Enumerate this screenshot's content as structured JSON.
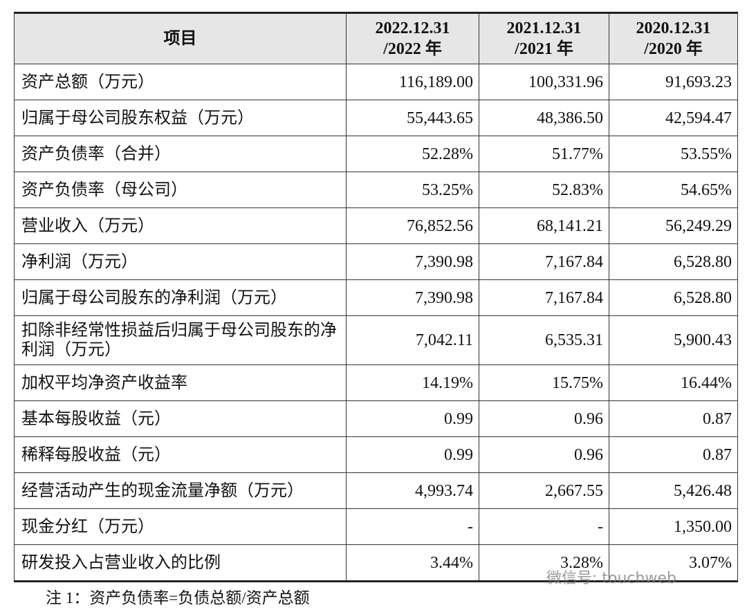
{
  "table": {
    "header": [
      "项目",
      "2022.12.31\n/2022 年",
      "2021.12.31\n/2021 年",
      "2020.12.31\n/2020 年"
    ],
    "rows": [
      [
        "资产总额（万元）",
        "116,189.00",
        "100,331.96",
        "91,693.23"
      ],
      [
        "归属于母公司股东权益（万元）",
        "55,443.65",
        "48,386.50",
        "42,594.47"
      ],
      [
        "资产负债率（合并）",
        "52.28%",
        "51.77%",
        "53.55%"
      ],
      [
        "资产负债率（母公司）",
        "53.25%",
        "52.83%",
        "54.65%"
      ],
      [
        "营业收入（万元）",
        "76,852.56",
        "68,141.21",
        "56,249.29"
      ],
      [
        "净利润（万元）",
        "7,390.98",
        "7,167.84",
        "6,528.80"
      ],
      [
        "归属于母公司股东的净利润（万元）",
        "7,390.98",
        "7,167.84",
        "6,528.80"
      ],
      [
        "扣除非经常性损益后归属于母公司股东的净利润（万元）",
        "7,042.11",
        "6,535.31",
        "5,900.43"
      ],
      [
        "加权平均净资产收益率",
        "14.19%",
        "15.75%",
        "16.44%"
      ],
      [
        "基本每股收益（元）",
        "0.99",
        "0.96",
        "0.87"
      ],
      [
        "稀释每股收益（元）",
        "0.99",
        "0.96",
        "0.87"
      ],
      [
        "经营活动产生的现金流量净额（万元）",
        "4,993.74",
        "2,667.55",
        "5,426.48"
      ],
      [
        "现金分红（万元）",
        "-",
        "-",
        "1,350.00"
      ],
      [
        "研发投入占营业收入的比例",
        "3.44%",
        "3.28%",
        "3.07%"
      ]
    ]
  },
  "note": "注 1：资产负债率=负债总额/资产总额",
  "watermark": "微信号: touchweb"
}
